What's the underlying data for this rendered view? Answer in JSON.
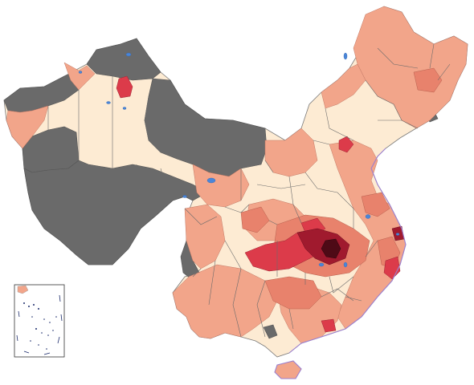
{
  "map": {
    "legend_colors": {
      "no_data": "#6a6a6a",
      "level_0": "#fdebd3",
      "level_1": "#f2a58a",
      "level_2": "#e8826c",
      "level_3": "#dc3b4a",
      "level_4": "#a01a2e",
      "level_5": "#4e0a16"
    },
    "water_color": "#4a86d8",
    "coastline_color": "#9a7fd0",
    "inset": {
      "shown": true
    }
  }
}
